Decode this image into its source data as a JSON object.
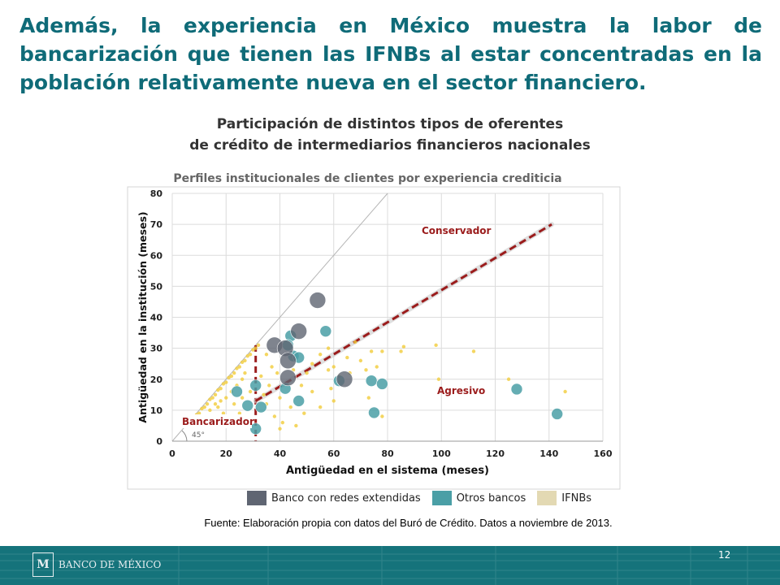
{
  "slide": {
    "headline": "Además, la experiencia en México muestra la labor de bancarización que tienen las IFNBs al estar concentradas en la población relativamente nueva en el sector financiero.",
    "chart_title_line1": "Participación de distintos tipos de oferentes",
    "chart_title_line2": "de crédito de intermediarios financieros nacionales",
    "chart_subtitle": "Perfiles institucionales  de clientes por experiencia crediticia",
    "source": "Fuente: Elaboración propia con datos del Buró de Crédito. Datos a  noviembre de 2013.",
    "page_number": "12",
    "logo_text": "BANCO DE MÉXICO"
  },
  "colors": {
    "headline": "#0f6b78",
    "banco_redes": "#5f6572",
    "otros_bancos": "#4a9fa6",
    "ifnbs": "#f1cc3a",
    "legend_ifnbs": "#e3d9b3",
    "annotation_red": "#9b1c1c",
    "footer": "#15737b"
  },
  "chart_data": {
    "type": "scatter",
    "xlabel": "Antigüedad en el sistema (meses)",
    "ylabel": "Antigüedad en la institución (meses)",
    "xlim": [
      0,
      160
    ],
    "ylim": [
      0,
      80
    ],
    "xticks": [
      0,
      20,
      40,
      60,
      80,
      100,
      120,
      140,
      160
    ],
    "yticks": [
      0,
      10,
      20,
      30,
      40,
      50,
      60,
      70,
      80
    ],
    "grid": true,
    "legend_position": "bottom",
    "annotations": {
      "conservador": "Conservador",
      "agresivo": "Agresivo",
      "bancarizador": "Bancarizador",
      "angle": "45°"
    },
    "reference_lines": {
      "diagonal_45": [
        [
          0,
          0
        ],
        [
          80,
          80
        ]
      ],
      "bancarizador_vertical_x": 31,
      "conservador_trend": [
        [
          31,
          13
        ],
        [
          141,
          70
        ]
      ]
    },
    "series": [
      {
        "name": "Banco con redes extendidas",
        "points": [
          {
            "x": 54,
            "y": 45.5,
            "r": 10
          },
          {
            "x": 47,
            "y": 35.5,
            "r": 10
          },
          {
            "x": 38,
            "y": 31,
            "r": 10
          },
          {
            "x": 42,
            "y": 30,
            "r": 10
          },
          {
            "x": 43,
            "y": 26,
            "r": 10
          },
          {
            "x": 43,
            "y": 20.5,
            "r": 10
          },
          {
            "x": 64,
            "y": 20,
            "r": 10
          }
        ]
      },
      {
        "name": "Otros bancos",
        "points": [
          {
            "x": 57,
            "y": 35.5,
            "r": 7
          },
          {
            "x": 44,
            "y": 34,
            "r": 7
          },
          {
            "x": 43,
            "y": 31,
            "r": 7
          },
          {
            "x": 45,
            "y": 27.5,
            "r": 7
          },
          {
            "x": 47,
            "y": 27,
            "r": 7
          },
          {
            "x": 24,
            "y": 16,
            "r": 7
          },
          {
            "x": 31,
            "y": 18,
            "r": 7
          },
          {
            "x": 42,
            "y": 17,
            "r": 7
          },
          {
            "x": 62,
            "y": 19.5,
            "r": 7
          },
          {
            "x": 74,
            "y": 19.5,
            "r": 7
          },
          {
            "x": 78,
            "y": 18.5,
            "r": 7
          },
          {
            "x": 28,
            "y": 11.5,
            "r": 7
          },
          {
            "x": 33,
            "y": 11,
            "r": 7
          },
          {
            "x": 47,
            "y": 13,
            "r": 7
          },
          {
            "x": 75,
            "y": 9.2,
            "r": 7
          },
          {
            "x": 31,
            "y": 4,
            "r": 7
          },
          {
            "x": 128,
            "y": 16.8,
            "r": 7
          },
          {
            "x": 143,
            "y": 8.8,
            "r": 7
          }
        ]
      },
      {
        "name": "IFNBs",
        "points": [
          {
            "x": 8,
            "y": 7
          },
          {
            "x": 9,
            "y": 8.5
          },
          {
            "x": 10,
            "y": 9
          },
          {
            "x": 11,
            "y": 10.5
          },
          {
            "x": 12,
            "y": 11
          },
          {
            "x": 13,
            "y": 12
          },
          {
            "x": 14,
            "y": 13.5
          },
          {
            "x": 15,
            "y": 14
          },
          {
            "x": 16,
            "y": 15
          },
          {
            "x": 17,
            "y": 16.5
          },
          {
            "x": 18,
            "y": 17
          },
          {
            "x": 19,
            "y": 18.5
          },
          {
            "x": 20,
            "y": 19
          },
          {
            "x": 21,
            "y": 20.5
          },
          {
            "x": 22,
            "y": 21
          },
          {
            "x": 23,
            "y": 22
          },
          {
            "x": 24,
            "y": 23.5
          },
          {
            "x": 25,
            "y": 24
          },
          {
            "x": 26,
            "y": 25.5
          },
          {
            "x": 27,
            "y": 26
          },
          {
            "x": 28,
            "y": 27.5
          },
          {
            "x": 29,
            "y": 28
          },
          {
            "x": 30,
            "y": 29.5
          },
          {
            "x": 31,
            "y": 30
          },
          {
            "x": 32,
            "y": 31
          },
          {
            "x": 12,
            "y": 8
          },
          {
            "x": 14,
            "y": 10
          },
          {
            "x": 16,
            "y": 12
          },
          {
            "x": 18,
            "y": 13
          },
          {
            "x": 20,
            "y": 14
          },
          {
            "x": 22,
            "y": 16
          },
          {
            "x": 24,
            "y": 18
          },
          {
            "x": 26,
            "y": 20
          },
          {
            "x": 27,
            "y": 22
          },
          {
            "x": 15,
            "y": 6
          },
          {
            "x": 19,
            "y": 9
          },
          {
            "x": 23,
            "y": 12
          },
          {
            "x": 26,
            "y": 14
          },
          {
            "x": 29,
            "y": 16
          },
          {
            "x": 21,
            "y": 7
          },
          {
            "x": 25,
            "y": 9
          },
          {
            "x": 17,
            "y": 11
          },
          {
            "x": 35,
            "y": 28
          },
          {
            "x": 37,
            "y": 24
          },
          {
            "x": 39,
            "y": 22
          },
          {
            "x": 36,
            "y": 18
          },
          {
            "x": 40,
            "y": 14
          },
          {
            "x": 38,
            "y": 8
          },
          {
            "x": 41,
            "y": 6
          },
          {
            "x": 46,
            "y": 5
          },
          {
            "x": 44,
            "y": 11
          },
          {
            "x": 48,
            "y": 18
          },
          {
            "x": 50,
            "y": 22
          },
          {
            "x": 52,
            "y": 25
          },
          {
            "x": 55,
            "y": 28
          },
          {
            "x": 58,
            "y": 30
          },
          {
            "x": 60,
            "y": 24
          },
          {
            "x": 62,
            "y": 21
          },
          {
            "x": 65,
            "y": 27
          },
          {
            "x": 68,
            "y": 32
          },
          {
            "x": 70,
            "y": 26
          },
          {
            "x": 72,
            "y": 23
          },
          {
            "x": 74,
            "y": 29
          },
          {
            "x": 76,
            "y": 24
          },
          {
            "x": 78,
            "y": 29
          },
          {
            "x": 85,
            "y": 29
          },
          {
            "x": 86,
            "y": 30.5
          },
          {
            "x": 98,
            "y": 31
          },
          {
            "x": 99,
            "y": 20
          },
          {
            "x": 112,
            "y": 29
          },
          {
            "x": 125,
            "y": 20
          },
          {
            "x": 146,
            "y": 16
          },
          {
            "x": 59,
            "y": 17
          },
          {
            "x": 60,
            "y": 13
          },
          {
            "x": 55,
            "y": 11
          },
          {
            "x": 52,
            "y": 16
          },
          {
            "x": 34,
            "y": 15
          },
          {
            "x": 33,
            "y": 21
          },
          {
            "x": 35,
            "y": 12
          },
          {
            "x": 45,
            "y": 23
          },
          {
            "x": 58,
            "y": 23
          },
          {
            "x": 66,
            "y": 22
          },
          {
            "x": 73,
            "y": 14
          },
          {
            "x": 78,
            "y": 8
          },
          {
            "x": 40,
            "y": 4
          },
          {
            "x": 49,
            "y": 9
          }
        ]
      }
    ]
  }
}
